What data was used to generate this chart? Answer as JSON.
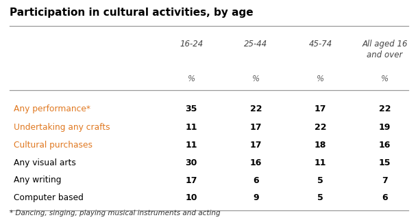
{
  "title": "Participation in cultural activities, by age",
  "col_headers": [
    "16-24",
    "25-44",
    "45-74",
    "All aged 16\nand over"
  ],
  "col_pct": [
    "%",
    "%",
    "%",
    "%"
  ],
  "row_labels": [
    "Any performance*",
    "Undertaking any crafts",
    "Cultural purchases",
    "Any visual arts",
    "Any writing",
    "Computer based"
  ],
  "row_label_color": [
    "#E07820",
    "#E07820",
    "#E07820",
    "#000000",
    "#000000",
    "#000000"
  ],
  "values": [
    [
      35,
      22,
      17,
      22
    ],
    [
      11,
      17,
      22,
      19
    ],
    [
      11,
      17,
      18,
      16
    ],
    [
      30,
      16,
      11,
      15
    ],
    [
      17,
      6,
      5,
      7
    ],
    [
      10,
      9,
      5,
      6
    ]
  ],
  "footnote": "* Dancing, singing, playing musical instruments and acting",
  "background_color": "#ffffff",
  "title_color": "#000000",
  "value_color": "#000000"
}
